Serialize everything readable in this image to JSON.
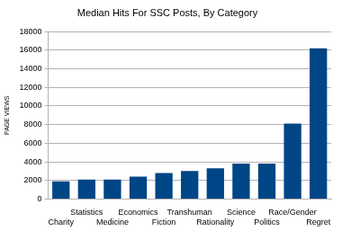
{
  "chart_data": {
    "type": "bar",
    "title": "Median Hits For SSC Posts, By Category",
    "y_label": "PAGE VIEWS",
    "categories": [
      "Charity",
      "Statistics",
      "Medicine",
      "Economics",
      "Fiction",
      "Transhuman",
      "Rationality",
      "Science",
      "Politics",
      "Race/Gender",
      "Regret"
    ],
    "values": [
      1900,
      2100,
      2100,
      2400,
      2800,
      3000,
      3300,
      3800,
      3800,
      8100,
      16200
    ],
    "color": "#004586",
    "ylim": [
      0,
      18000
    ],
    "yticks": [
      0,
      2000,
      4000,
      6000,
      8000,
      10000,
      12000,
      14000,
      16000,
      18000
    ],
    "grid": true
  }
}
